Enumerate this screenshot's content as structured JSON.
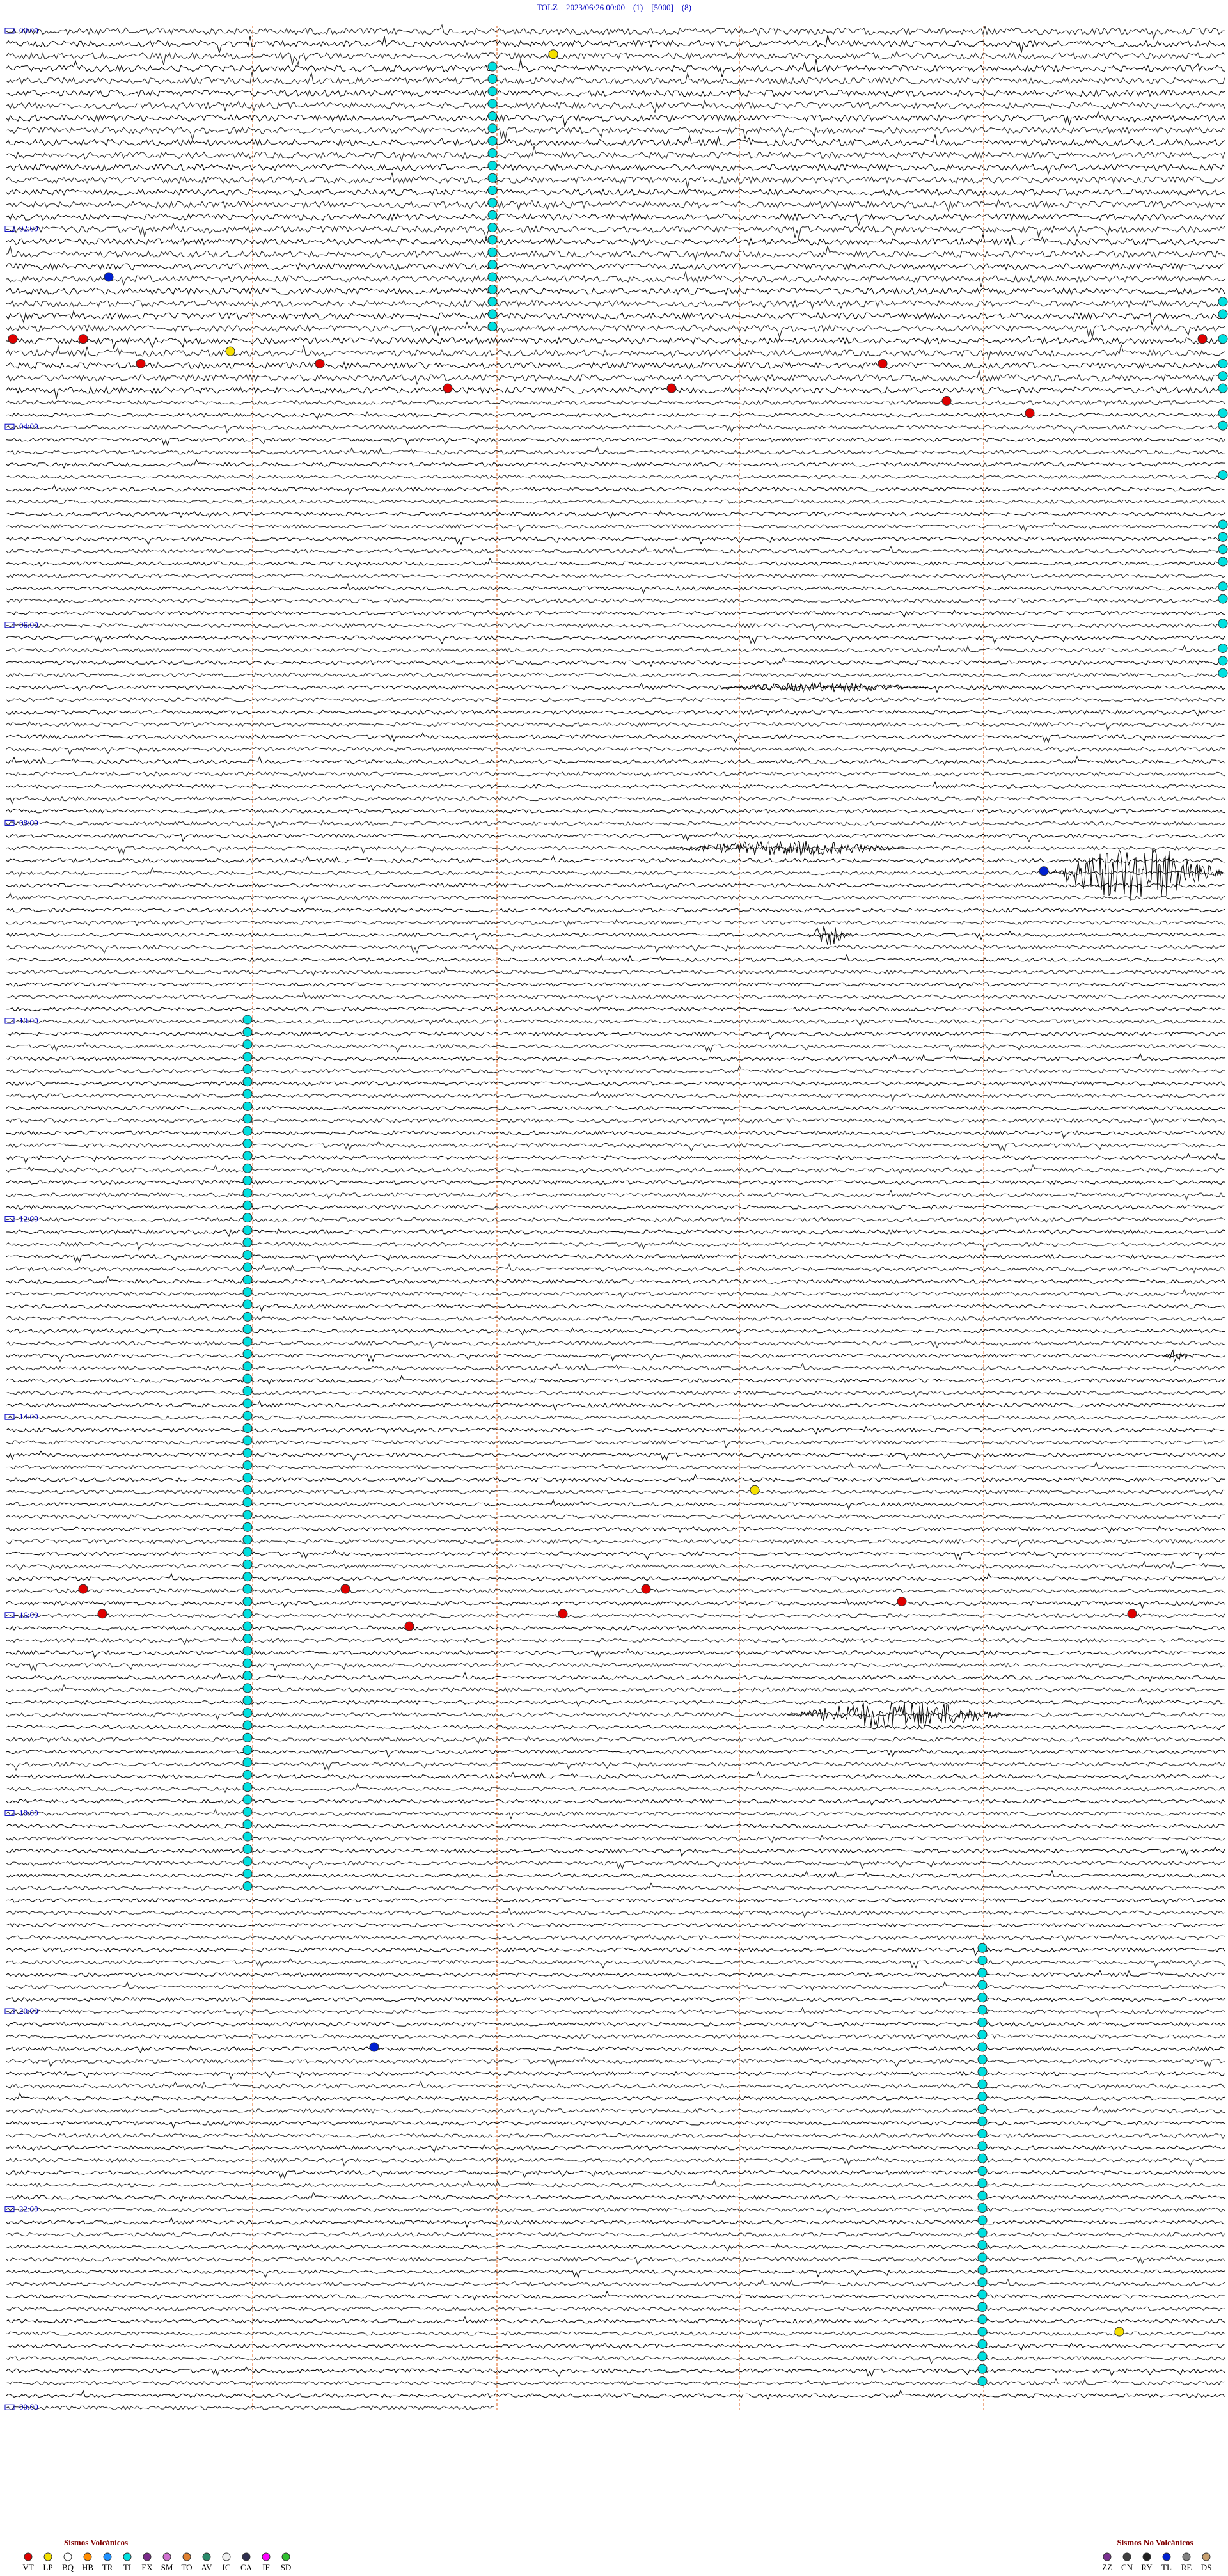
{
  "header": {
    "title": "TOLZ    2023/06/26 00:00    (1)    [5000]    (8)"
  },
  "time_labels": [
    "00:00",
    "02:00",
    "04:00",
    "06:00",
    "08:00",
    "10:00",
    "12:00",
    "14:00",
    "16:00",
    "18:00",
    "20:00",
    "22:00",
    "00:00"
  ],
  "legend_volcanic": {
    "title": "Sismos Volcánicos",
    "items": [
      {
        "code": "VT",
        "color": "#e00000"
      },
      {
        "code": "LP",
        "color": "#f5e000"
      },
      {
        "code": "BQ",
        "color": "#ffffff"
      },
      {
        "code": "HB",
        "color": "#ff8c00"
      },
      {
        "code": "TR",
        "color": "#1e90ff"
      },
      {
        "code": "TI",
        "color": "#00e0e0"
      },
      {
        "code": "EX",
        "color": "#7a2a8a"
      },
      {
        "code": "SM",
        "color": "#d070d0"
      },
      {
        "code": "TO",
        "color": "#e08030"
      },
      {
        "code": "AV",
        "color": "#2a8a6a"
      },
      {
        "code": "IC",
        "color": "#f0f0f0"
      },
      {
        "code": "CA",
        "color": "#303050"
      },
      {
        "code": "IF",
        "color": "#ff00ff"
      },
      {
        "code": "SD",
        "color": "#30c030"
      }
    ]
  },
  "legend_non_volcanic": {
    "title": "Sismos No Volcánicos",
    "items": [
      {
        "code": "ZZ",
        "color": "#7a3090"
      },
      {
        "code": "CN",
        "color": "#404040"
      },
      {
        "code": "RY",
        "color": "#202020"
      },
      {
        "code": "TL",
        "color": "#0020d0"
      },
      {
        "code": "RE",
        "color": "#808080"
      },
      {
        "code": "DS",
        "color": "#c8a070"
      }
    ]
  }
}
